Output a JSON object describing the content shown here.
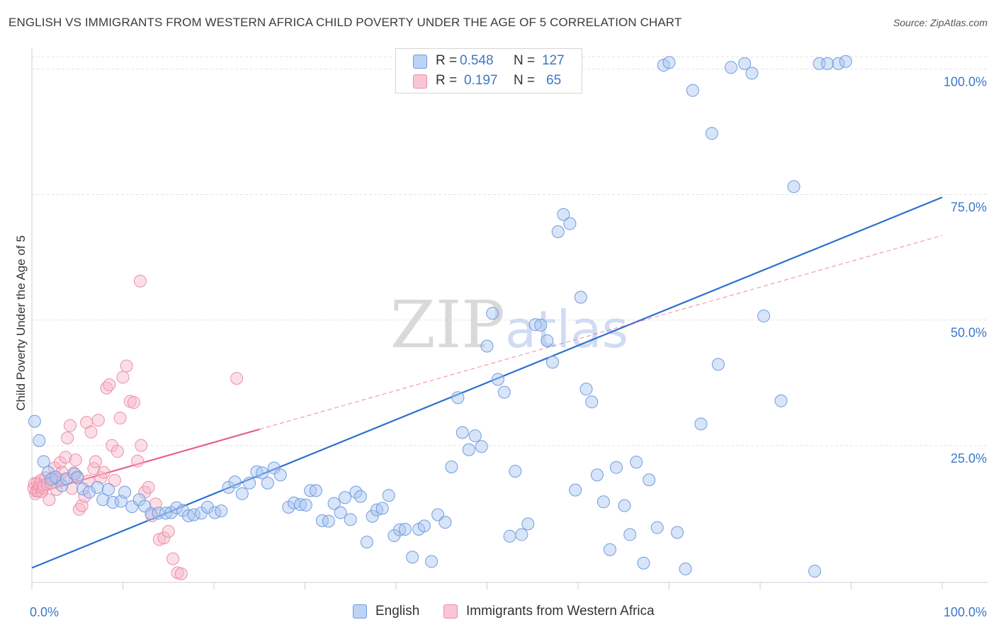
{
  "title": "ENGLISH VS IMMIGRANTS FROM WESTERN AFRICA CHILD POVERTY UNDER THE AGE OF 5 CORRELATION CHART",
  "source": "Source: ZipAtlas.com",
  "watermark": {
    "zip": "ZIP",
    "atlas": "atlas"
  },
  "legend_top": [
    {
      "r_label": "R =",
      "r_value": "0.548",
      "n_label": "N =",
      "n_value": "127"
    },
    {
      "r_label": "R =",
      "r_value": "0.197",
      "n_label": "N =",
      "n_value": "65"
    }
  ],
  "legend_bottom": [
    {
      "label": "English"
    },
    {
      "label": "Immigrants from Western Africa"
    }
  ],
  "colors": {
    "english_fill": "#a9c4f0",
    "english_stroke": "#6f9de0",
    "english_line": "#2d6fcf",
    "wa_fill": "#f7b6c8",
    "wa_stroke": "#ec8fab",
    "wa_line": "#e8608b",
    "grid": "#e3e3e3",
    "tick_text": "#3b78c9"
  },
  "chart_data": {
    "type": "scatter",
    "title": "ENGLISH VS IMMIGRANTS FROM WESTERN AFRICA CHILD POVERTY UNDER THE AGE OF 5 CORRELATION CHART",
    "xlabel": "",
    "ylabel": "Child Poverty Under the Age of 5",
    "xlim": [
      0,
      100
    ],
    "ylim": [
      0,
      100
    ],
    "x_tick_labels": [
      "0.0%",
      "100.0%"
    ],
    "y_ticks": [
      25,
      50,
      75,
      100
    ],
    "y_tick_labels": [
      "25.0%",
      "50.0%",
      "75.0%",
      "100.0%"
    ],
    "grid": true,
    "legend_placement": "top-center",
    "series": [
      {
        "name": "English",
        "R": 0.548,
        "N": 127,
        "trend": {
          "x": [
            0,
            100
          ],
          "y": [
            2.7,
            71.7
          ],
          "style": "solid"
        },
        "points": [
          [
            0.3,
            30.0
          ],
          [
            0.8,
            26.4
          ],
          [
            1.3,
            22.5
          ],
          [
            1.8,
            20.5
          ],
          [
            2.1,
            19.2
          ],
          [
            2.6,
            19.6
          ],
          [
            3.3,
            18.0
          ],
          [
            3.8,
            19.3
          ],
          [
            4.7,
            20.2
          ],
          [
            5.0,
            19.5
          ],
          [
            5.6,
            17.4
          ],
          [
            6.3,
            16.8
          ],
          [
            7.2,
            17.7
          ],
          [
            7.8,
            15.4
          ],
          [
            8.4,
            17.3
          ],
          [
            8.9,
            14.9
          ],
          [
            9.8,
            15.1
          ],
          [
            10.2,
            16.8
          ],
          [
            11.0,
            14.1
          ],
          [
            11.8,
            15.4
          ],
          [
            12.4,
            14.2
          ],
          [
            13.1,
            12.8
          ],
          [
            13.9,
            12.9
          ],
          [
            14.7,
            12.9
          ],
          [
            15.3,
            13.0
          ],
          [
            15.9,
            13.9
          ],
          [
            16.6,
            13.4
          ],
          [
            17.2,
            12.4
          ],
          [
            17.8,
            12.6
          ],
          [
            18.6,
            12.9
          ],
          [
            19.3,
            14.0
          ],
          [
            20.1,
            13.0
          ],
          [
            20.8,
            13.3
          ],
          [
            21.6,
            17.7
          ],
          [
            22.3,
            18.7
          ],
          [
            23.1,
            16.5
          ],
          [
            23.9,
            18.5
          ],
          [
            24.7,
            20.6
          ],
          [
            25.3,
            20.4
          ],
          [
            25.9,
            18.5
          ],
          [
            26.6,
            21.3
          ],
          [
            27.3,
            20.0
          ],
          [
            28.2,
            14.0
          ],
          [
            28.8,
            14.8
          ],
          [
            29.5,
            14.5
          ],
          [
            30.1,
            14.4
          ],
          [
            30.6,
            17.1
          ],
          [
            31.2,
            17.1
          ],
          [
            31.9,
            11.5
          ],
          [
            32.6,
            11.4
          ],
          [
            33.2,
            14.7
          ],
          [
            33.9,
            13.0
          ],
          [
            34.4,
            15.8
          ],
          [
            35.0,
            11.7
          ],
          [
            35.6,
            16.8
          ],
          [
            36.1,
            16.0
          ],
          [
            36.8,
            7.5
          ],
          [
            37.4,
            12.3
          ],
          [
            37.9,
            13.5
          ],
          [
            38.5,
            13.8
          ],
          [
            39.2,
            16.2
          ],
          [
            39.8,
            8.7
          ],
          [
            40.4,
            9.8
          ],
          [
            41.0,
            9.9
          ],
          [
            41.8,
            4.7
          ],
          [
            42.5,
            9.9
          ],
          [
            43.1,
            10.5
          ],
          [
            43.9,
            3.9
          ],
          [
            44.6,
            12.6
          ],
          [
            45.4,
            11.2
          ],
          [
            46.1,
            21.5
          ],
          [
            46.8,
            34.4
          ],
          [
            47.3,
            27.9
          ],
          [
            48.0,
            24.7
          ],
          [
            48.7,
            27.3
          ],
          [
            49.4,
            25.3
          ],
          [
            50.0,
            44.0
          ],
          [
            50.6,
            50.1
          ],
          [
            51.2,
            37.8
          ],
          [
            51.9,
            35.4
          ],
          [
            52.5,
            8.6
          ],
          [
            53.1,
            20.7
          ],
          [
            53.8,
            8.9
          ],
          [
            54.5,
            10.9
          ],
          [
            55.3,
            48.0
          ],
          [
            55.9,
            47.9
          ],
          [
            56.6,
            45.0
          ],
          [
            57.2,
            41.0
          ],
          [
            57.8,
            65.3
          ],
          [
            58.4,
            68.5
          ],
          [
            59.1,
            66.8
          ],
          [
            59.7,
            17.2
          ],
          [
            60.3,
            53.1
          ],
          [
            60.9,
            36.0
          ],
          [
            61.5,
            33.6
          ],
          [
            62.1,
            20.0
          ],
          [
            62.8,
            15.0
          ],
          [
            63.5,
            6.1
          ],
          [
            64.2,
            21.4
          ],
          [
            65.1,
            14.3
          ],
          [
            65.7,
            8.9
          ],
          [
            66.4,
            22.4
          ],
          [
            67.2,
            3.6
          ],
          [
            67.8,
            19.1
          ],
          [
            68.7,
            10.2
          ],
          [
            69.4,
            96.3
          ],
          [
            70.0,
            96.8
          ],
          [
            70.9,
            9.3
          ],
          [
            71.8,
            2.5
          ],
          [
            72.6,
            91.6
          ],
          [
            73.5,
            29.5
          ],
          [
            74.7,
            83.6
          ],
          [
            75.4,
            40.6
          ],
          [
            76.8,
            95.9
          ],
          [
            78.3,
            96.6
          ],
          [
            79.1,
            94.8
          ],
          [
            80.4,
            49.6
          ],
          [
            82.3,
            33.8
          ],
          [
            83.7,
            73.7
          ],
          [
            86.0,
            2.1
          ],
          [
            86.5,
            96.6
          ],
          [
            87.4,
            96.6
          ],
          [
            88.6,
            96.6
          ],
          [
            89.4,
            97.0
          ]
        ]
      },
      {
        "name": "Immigrants from Western Africa",
        "R": 0.197,
        "N": 65,
        "trend": {
          "x": [
            0,
            25,
            100
          ],
          "y": [
            16.4,
            28.5,
            64.6
          ],
          "solid_until_x": 25,
          "style": "solid-then-dashed"
        },
        "points": [
          [
            0.2,
            17.5
          ],
          [
            0.3,
            18.4
          ],
          [
            0.4,
            16.5
          ],
          [
            0.5,
            17.0
          ],
          [
            0.6,
            18.5
          ],
          [
            0.7,
            17.0
          ],
          [
            0.8,
            18.2
          ],
          [
            0.9,
            17.8
          ],
          [
            1.0,
            19.0
          ],
          [
            1.1,
            16.9
          ],
          [
            1.2,
            17.6
          ],
          [
            1.3,
            18.1
          ],
          [
            1.5,
            19.5
          ],
          [
            1.7,
            18.3
          ],
          [
            1.9,
            15.4
          ],
          [
            2.1,
            18.5
          ],
          [
            2.3,
            19.5
          ],
          [
            2.5,
            21.3
          ],
          [
            2.7,
            17.3
          ],
          [
            2.9,
            19.2
          ],
          [
            3.1,
            22.3
          ],
          [
            3.3,
            20.5
          ],
          [
            3.5,
            19.1
          ],
          [
            3.7,
            23.3
          ],
          [
            3.9,
            26.9
          ],
          [
            4.2,
            29.2
          ],
          [
            4.4,
            17.5
          ],
          [
            4.6,
            20.4
          ],
          [
            4.8,
            22.8
          ],
          [
            5.0,
            19.7
          ],
          [
            5.2,
            13.6
          ],
          [
            5.5,
            14.3
          ],
          [
            5.8,
            16.0
          ],
          [
            6.0,
            29.8
          ],
          [
            6.2,
            18.9
          ],
          [
            6.5,
            28.0
          ],
          [
            6.8,
            21.2
          ],
          [
            7.0,
            22.5
          ],
          [
            7.3,
            30.2
          ],
          [
            7.6,
            19.5
          ],
          [
            7.9,
            20.5
          ],
          [
            8.2,
            36.2
          ],
          [
            8.5,
            36.8
          ],
          [
            8.8,
            25.5
          ],
          [
            9.1,
            19.0
          ],
          [
            9.4,
            24.4
          ],
          [
            9.7,
            30.6
          ],
          [
            10.0,
            38.2
          ],
          [
            10.4,
            40.3
          ],
          [
            10.8,
            33.7
          ],
          [
            11.2,
            33.5
          ],
          [
            11.6,
            22.6
          ],
          [
            12.0,
            25.5
          ],
          [
            12.4,
            16.8
          ],
          [
            12.8,
            17.7
          ],
          [
            13.2,
            12.4
          ],
          [
            13.6,
            14.6
          ],
          [
            14.0,
            8.0
          ],
          [
            14.5,
            8.3
          ],
          [
            15.0,
            9.5
          ],
          [
            15.5,
            4.4
          ],
          [
            16.0,
            1.8
          ],
          [
            16.4,
            1.6
          ],
          [
            11.9,
            56.1
          ],
          [
            22.5,
            38.0
          ]
        ]
      }
    ]
  }
}
